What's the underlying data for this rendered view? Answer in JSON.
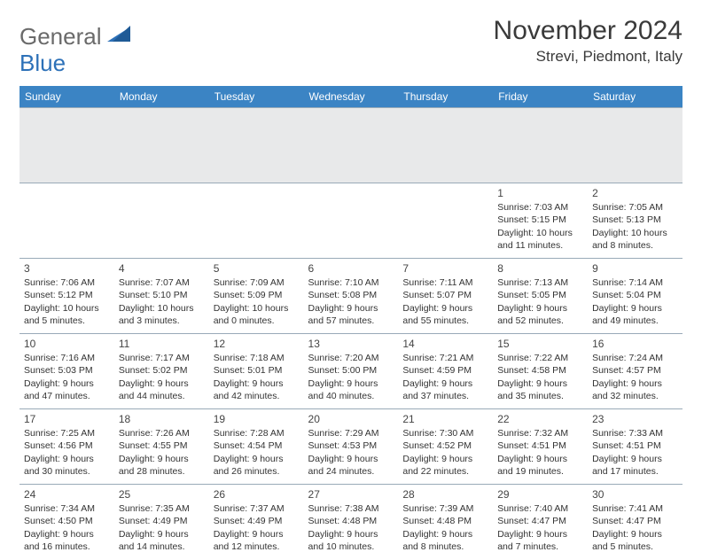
{
  "logo": {
    "word1": "General",
    "word2": "Blue"
  },
  "title": "November 2024",
  "location": "Strevi, Piedmont, Italy",
  "header_bg": "#3b84c4",
  "days": [
    "Sunday",
    "Monday",
    "Tuesday",
    "Wednesday",
    "Thursday",
    "Friday",
    "Saturday"
  ],
  "weeks": [
    [
      {},
      {},
      {},
      {},
      {},
      {
        "n": "1",
        "sr": "Sunrise: 7:03 AM",
        "ss": "Sunset: 5:15 PM",
        "dl": "Daylight: 10 hours and 11 minutes."
      },
      {
        "n": "2",
        "sr": "Sunrise: 7:05 AM",
        "ss": "Sunset: 5:13 PM",
        "dl": "Daylight: 10 hours and 8 minutes."
      }
    ],
    [
      {
        "n": "3",
        "sr": "Sunrise: 7:06 AM",
        "ss": "Sunset: 5:12 PM",
        "dl": "Daylight: 10 hours and 5 minutes."
      },
      {
        "n": "4",
        "sr": "Sunrise: 7:07 AM",
        "ss": "Sunset: 5:10 PM",
        "dl": "Daylight: 10 hours and 3 minutes."
      },
      {
        "n": "5",
        "sr": "Sunrise: 7:09 AM",
        "ss": "Sunset: 5:09 PM",
        "dl": "Daylight: 10 hours and 0 minutes."
      },
      {
        "n": "6",
        "sr": "Sunrise: 7:10 AM",
        "ss": "Sunset: 5:08 PM",
        "dl": "Daylight: 9 hours and 57 minutes."
      },
      {
        "n": "7",
        "sr": "Sunrise: 7:11 AM",
        "ss": "Sunset: 5:07 PM",
        "dl": "Daylight: 9 hours and 55 minutes."
      },
      {
        "n": "8",
        "sr": "Sunrise: 7:13 AM",
        "ss": "Sunset: 5:05 PM",
        "dl": "Daylight: 9 hours and 52 minutes."
      },
      {
        "n": "9",
        "sr": "Sunrise: 7:14 AM",
        "ss": "Sunset: 5:04 PM",
        "dl": "Daylight: 9 hours and 49 minutes."
      }
    ],
    [
      {
        "n": "10",
        "sr": "Sunrise: 7:16 AM",
        "ss": "Sunset: 5:03 PM",
        "dl": "Daylight: 9 hours and 47 minutes."
      },
      {
        "n": "11",
        "sr": "Sunrise: 7:17 AM",
        "ss": "Sunset: 5:02 PM",
        "dl": "Daylight: 9 hours and 44 minutes."
      },
      {
        "n": "12",
        "sr": "Sunrise: 7:18 AM",
        "ss": "Sunset: 5:01 PM",
        "dl": "Daylight: 9 hours and 42 minutes."
      },
      {
        "n": "13",
        "sr": "Sunrise: 7:20 AM",
        "ss": "Sunset: 5:00 PM",
        "dl": "Daylight: 9 hours and 40 minutes."
      },
      {
        "n": "14",
        "sr": "Sunrise: 7:21 AM",
        "ss": "Sunset: 4:59 PM",
        "dl": "Daylight: 9 hours and 37 minutes."
      },
      {
        "n": "15",
        "sr": "Sunrise: 7:22 AM",
        "ss": "Sunset: 4:58 PM",
        "dl": "Daylight: 9 hours and 35 minutes."
      },
      {
        "n": "16",
        "sr": "Sunrise: 7:24 AM",
        "ss": "Sunset: 4:57 PM",
        "dl": "Daylight: 9 hours and 32 minutes."
      }
    ],
    [
      {
        "n": "17",
        "sr": "Sunrise: 7:25 AM",
        "ss": "Sunset: 4:56 PM",
        "dl": "Daylight: 9 hours and 30 minutes."
      },
      {
        "n": "18",
        "sr": "Sunrise: 7:26 AM",
        "ss": "Sunset: 4:55 PM",
        "dl": "Daylight: 9 hours and 28 minutes."
      },
      {
        "n": "19",
        "sr": "Sunrise: 7:28 AM",
        "ss": "Sunset: 4:54 PM",
        "dl": "Daylight: 9 hours and 26 minutes."
      },
      {
        "n": "20",
        "sr": "Sunrise: 7:29 AM",
        "ss": "Sunset: 4:53 PM",
        "dl": "Daylight: 9 hours and 24 minutes."
      },
      {
        "n": "21",
        "sr": "Sunrise: 7:30 AM",
        "ss": "Sunset: 4:52 PM",
        "dl": "Daylight: 9 hours and 22 minutes."
      },
      {
        "n": "22",
        "sr": "Sunrise: 7:32 AM",
        "ss": "Sunset: 4:51 PM",
        "dl": "Daylight: 9 hours and 19 minutes."
      },
      {
        "n": "23",
        "sr": "Sunrise: 7:33 AM",
        "ss": "Sunset: 4:51 PM",
        "dl": "Daylight: 9 hours and 17 minutes."
      }
    ],
    [
      {
        "n": "24",
        "sr": "Sunrise: 7:34 AM",
        "ss": "Sunset: 4:50 PM",
        "dl": "Daylight: 9 hours and 16 minutes."
      },
      {
        "n": "25",
        "sr": "Sunrise: 7:35 AM",
        "ss": "Sunset: 4:49 PM",
        "dl": "Daylight: 9 hours and 14 minutes."
      },
      {
        "n": "26",
        "sr": "Sunrise: 7:37 AM",
        "ss": "Sunset: 4:49 PM",
        "dl": "Daylight: 9 hours and 12 minutes."
      },
      {
        "n": "27",
        "sr": "Sunrise: 7:38 AM",
        "ss": "Sunset: 4:48 PM",
        "dl": "Daylight: 9 hours and 10 minutes."
      },
      {
        "n": "28",
        "sr": "Sunrise: 7:39 AM",
        "ss": "Sunset: 4:48 PM",
        "dl": "Daylight: 9 hours and 8 minutes."
      },
      {
        "n": "29",
        "sr": "Sunrise: 7:40 AM",
        "ss": "Sunset: 4:47 PM",
        "dl": "Daylight: 9 hours and 7 minutes."
      },
      {
        "n": "30",
        "sr": "Sunrise: 7:41 AM",
        "ss": "Sunset: 4:47 PM",
        "dl": "Daylight: 9 hours and 5 minutes."
      }
    ]
  ]
}
